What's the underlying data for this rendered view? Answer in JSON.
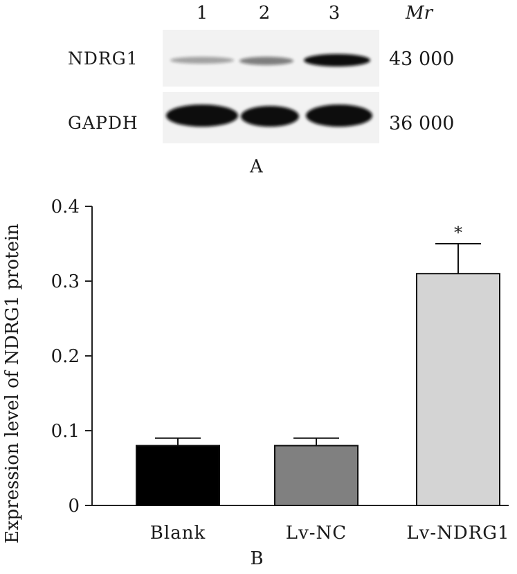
{
  "blot": {
    "lanes": [
      "1",
      "2",
      "3"
    ],
    "mr_label": "Mr",
    "rows": [
      {
        "protein": "NDRG1",
        "mw": "43 000",
        "intensities": [
          0.35,
          0.5,
          1.0
        ]
      },
      {
        "protein": "GAPDH",
        "mw": "36 000",
        "intensities": [
          1.0,
          1.0,
          1.0
        ]
      }
    ],
    "panel_label": "A"
  },
  "chart_data": {
    "type": "bar",
    "categories": [
      "Blank",
      "Lv-NC",
      "Lv-NDRG1"
    ],
    "values": [
      0.08,
      0.08,
      0.31
    ],
    "errors": [
      0.01,
      0.01,
      0.04
    ],
    "significance": [
      "",
      "",
      "*"
    ],
    "bar_colors": [
      "#000000",
      "#808080",
      "#d4d4d4"
    ],
    "ylabel": "Expression level of NDRG1 protein",
    "xlabel": "",
    "ylim": [
      0,
      0.4
    ],
    "yticks": [
      "0",
      "0.1",
      "0.2",
      "0.3",
      "0.4"
    ],
    "grid": false,
    "panel_label": "B"
  }
}
